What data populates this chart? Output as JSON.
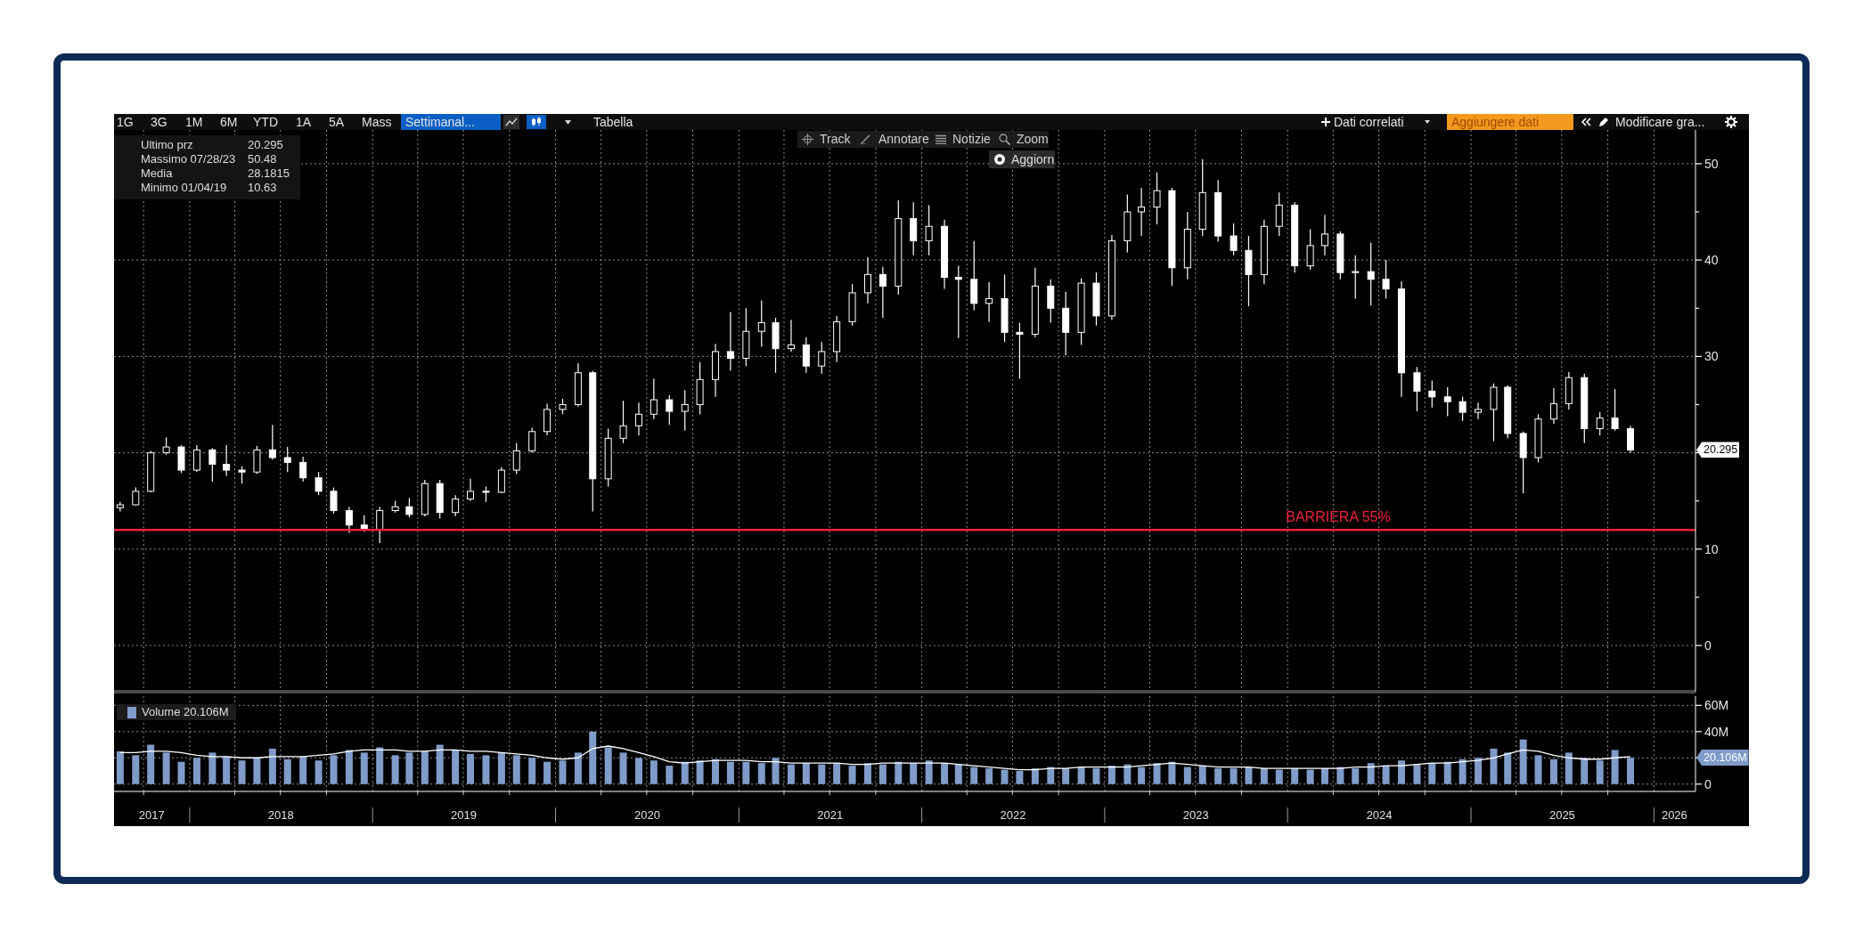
{
  "chart_data": [
    {
      "type": "other",
      "annotations": [
        "1G",
        "3G",
        "1M",
        "6M",
        "YTD",
        "1A",
        "5A",
        "Mass",
        "Settimanal...",
        "Tabella",
        "Dati correlati",
        "Aggiungere dati",
        "Modificare gra...",
        "Track",
        "Annotare",
        "Notizie",
        "Zoom",
        "Aggiorn"
      ]
    },
    {
      "type": "candlestick",
      "color": "#ffffff",
      "x": [
        "2017-08-15",
        "2017-09-15",
        "2017-10-15",
        "2017-11-15",
        "2017-12-15",
        "2018-01-15",
        "2018-02-15",
        "2018-03-15",
        "2018-04-15",
        "2018-05-15",
        "2018-06-15",
        "2018-07-15",
        "2018-08-15",
        "2018-09-15",
        "2018-10-15",
        "2018-11-15",
        "2018-12-15",
        "2019-01-15",
        "2019-02-15",
        "2019-03-15",
        "2019-04-15",
        "2019-05-15",
        "2019-06-15",
        "2019-07-15",
        "2019-08-15",
        "2019-09-15",
        "2019-10-15",
        "2019-11-15",
        "2019-12-15",
        "2020-01-15",
        "2020-02-15",
        "2020-03-15",
        "2020-04-15",
        "2020-05-15",
        "2020-06-15",
        "2020-07-15",
        "2020-08-15",
        "2020-09-15",
        "2020-10-15",
        "2020-11-15",
        "2020-12-15",
        "2021-01-15",
        "2021-02-15",
        "2021-03-15",
        "2021-04-15",
        "2021-05-15",
        "2021-06-15",
        "2021-07-15",
        "2021-08-15",
        "2021-09-15",
        "2021-10-15",
        "2021-11-15",
        "2021-12-15",
        "2022-01-15",
        "2022-02-15",
        "2022-03-15",
        "2022-04-15",
        "2022-05-15",
        "2022-06-15",
        "2022-07-15",
        "2022-08-15",
        "2022-09-15",
        "2022-10-15",
        "2022-11-15",
        "2022-12-15",
        "2023-01-15",
        "2023-02-15",
        "2023-03-15",
        "2023-04-15",
        "2023-05-15",
        "2023-06-15",
        "2023-07-15",
        "2023-08-15",
        "2023-09-15",
        "2023-10-15",
        "2023-11-15",
        "2023-12-15",
        "2024-01-15",
        "2024-02-15",
        "2024-03-15",
        "2024-04-15",
        "2024-05-15",
        "2024-06-15",
        "2024-07-15",
        "2024-08-15",
        "2024-09-15",
        "2024-10-15",
        "2024-11-15",
        "2024-12-15",
        "2025-01-15",
        "2025-02-15",
        "2025-03-15",
        "2025-04-15",
        "2025-05-15",
        "2025-06-15",
        "2025-07-15",
        "2025-08-15",
        "2025-09-15",
        "2025-10-15",
        "2025-11-15"
      ],
      "ohlc": [
        [
          14.3,
          14.9,
          13.9,
          14.6
        ],
        [
          14.6,
          16.4,
          14.5,
          16.0
        ],
        [
          16.0,
          20.2,
          15.9,
          20.0
        ],
        [
          20.0,
          21.6,
          19.8,
          20.6
        ],
        [
          20.6,
          20.8,
          17.9,
          18.2
        ],
        [
          18.2,
          20.8,
          18.0,
          20.3
        ],
        [
          20.3,
          20.5,
          17.0,
          18.8
        ],
        [
          18.8,
          20.8,
          17.6,
          18.2
        ],
        [
          18.2,
          18.6,
          16.8,
          18.0
        ],
        [
          18.0,
          20.7,
          17.8,
          20.3
        ],
        [
          20.3,
          22.9,
          19.3,
          19.5
        ],
        [
          19.5,
          20.6,
          18.0,
          19.0
        ],
        [
          19.0,
          19.6,
          17.0,
          17.4
        ],
        [
          17.4,
          18.0,
          15.6,
          16.0
        ],
        [
          16.0,
          16.4,
          13.7,
          14.0
        ],
        [
          14.0,
          14.4,
          11.7,
          12.5
        ],
        [
          12.5,
          13.5,
          11.8,
          12.0
        ],
        [
          12.0,
          14.4,
          10.63,
          14.0
        ],
        [
          14.0,
          15.0,
          13.8,
          14.4
        ],
        [
          14.4,
          15.3,
          13.3,
          13.6
        ],
        [
          13.6,
          17.2,
          13.4,
          16.8
        ],
        [
          16.8,
          17.2,
          13.2,
          13.8
        ],
        [
          13.8,
          15.6,
          13.4,
          15.2
        ],
        [
          15.2,
          17.3,
          15.0,
          16.0
        ],
        [
          16.0,
          16.5,
          14.9,
          15.9
        ],
        [
          15.9,
          18.5,
          15.8,
          18.2
        ],
        [
          18.2,
          21.0,
          17.8,
          20.2
        ],
        [
          20.2,
          22.6,
          20.0,
          22.2
        ],
        [
          22.2,
          25.1,
          21.8,
          24.5
        ],
        [
          24.5,
          25.6,
          24.0,
          25.0
        ],
        [
          25.0,
          29.3,
          24.8,
          28.3
        ],
        [
          28.3,
          28.5,
          13.9,
          17.3
        ],
        [
          17.3,
          22.5,
          16.5,
          21.5
        ],
        [
          21.5,
          25.4,
          21.0,
          22.8
        ],
        [
          22.8,
          25.2,
          21.8,
          24.0
        ],
        [
          24.0,
          27.7,
          23.5,
          25.5
        ],
        [
          25.5,
          26.0,
          22.9,
          24.3
        ],
        [
          24.3,
          26.5,
          22.3,
          25.0
        ],
        [
          25.0,
          29.4,
          24.0,
          27.6
        ],
        [
          27.6,
          31.3,
          25.8,
          30.5
        ],
        [
          30.5,
          34.6,
          28.5,
          29.8
        ],
        [
          29.8,
          35.0,
          29.0,
          32.6
        ],
        [
          32.6,
          35.8,
          31.0,
          33.5
        ],
        [
          33.5,
          34.0,
          28.3,
          30.8
        ],
        [
          30.8,
          33.8,
          30.5,
          31.2
        ],
        [
          31.2,
          32.0,
          28.3,
          29.0
        ],
        [
          29.0,
          31.5,
          28.2,
          30.5
        ],
        [
          30.5,
          34.2,
          29.4,
          33.6
        ],
        [
          33.6,
          37.5,
          33.2,
          36.6
        ],
        [
          36.6,
          40.3,
          35.5,
          38.5
        ],
        [
          38.5,
          39.3,
          34.0,
          37.3
        ],
        [
          37.3,
          46.2,
          36.4,
          44.3
        ],
        [
          44.3,
          46.0,
          40.5,
          42.0
        ],
        [
          42.0,
          45.7,
          40.5,
          43.5
        ],
        [
          43.5,
          44.2,
          37.0,
          38.2
        ],
        [
          38.2,
          39.4,
          31.9,
          38.0
        ],
        [
          38.0,
          42.0,
          34.8,
          35.5
        ],
        [
          35.5,
          37.7,
          33.6,
          36.0
        ],
        [
          36.0,
          38.5,
          31.5,
          32.5
        ],
        [
          32.5,
          33.5,
          27.7,
          32.3
        ],
        [
          32.3,
          39.2,
          32.0,
          37.3
        ],
        [
          37.3,
          38.0,
          33.5,
          35.0
        ],
        [
          35.0,
          36.7,
          30.1,
          32.5
        ],
        [
          32.5,
          38.1,
          31.2,
          37.6
        ],
        [
          37.6,
          38.7,
          33.2,
          34.2
        ],
        [
          34.2,
          42.6,
          33.8,
          42.0
        ],
        [
          42.0,
          46.8,
          40.8,
          45.0
        ],
        [
          45.0,
          47.5,
          42.5,
          45.5
        ],
        [
          45.5,
          49.1,
          43.7,
          47.2
        ],
        [
          47.2,
          47.5,
          37.3,
          39.2
        ],
        [
          39.2,
          45.0,
          38.0,
          43.2
        ],
        [
          43.2,
          50.48,
          42.5,
          47.0
        ],
        [
          47.0,
          48.3,
          41.9,
          42.5
        ],
        [
          42.5,
          43.8,
          40.5,
          41.0
        ],
        [
          41.0,
          42.5,
          35.2,
          38.5
        ],
        [
          38.5,
          44.2,
          37.5,
          43.5
        ],
        [
          43.5,
          47.0,
          42.5,
          45.7
        ],
        [
          45.7,
          46.0,
          38.7,
          39.4
        ],
        [
          39.4,
          43.2,
          39.0,
          41.5
        ],
        [
          41.5,
          44.7,
          40.5,
          42.7
        ],
        [
          42.7,
          43.0,
          38.0,
          38.7
        ],
        [
          38.7,
          40.5,
          36.0,
          38.8
        ],
        [
          38.8,
          41.8,
          35.3,
          38.0
        ],
        [
          38.0,
          40.0,
          36.0,
          37.0
        ],
        [
          37.0,
          37.8,
          25.8,
          28.3
        ],
        [
          28.3,
          28.9,
          24.3,
          26.4
        ],
        [
          26.4,
          27.5,
          24.7,
          25.8
        ],
        [
          25.8,
          26.8,
          23.8,
          25.3
        ],
        [
          25.3,
          25.8,
          23.3,
          24.2
        ],
        [
          24.2,
          25.2,
          23.5,
          24.5
        ],
        [
          24.5,
          27.2,
          21.2,
          26.8
        ],
        [
          26.8,
          27.0,
          21.5,
          22.0
        ],
        [
          22.0,
          22.2,
          15.8,
          19.5
        ],
        [
          19.5,
          24.0,
          19.0,
          23.5
        ],
        [
          23.5,
          26.7,
          23.0,
          25.1
        ],
        [
          25.1,
          28.4,
          24.5,
          27.8
        ],
        [
          27.8,
          28.2,
          21.0,
          22.5
        ],
        [
          22.5,
          24.2,
          21.8,
          23.6
        ],
        [
          23.6,
          26.6,
          22.3,
          22.5
        ],
        [
          22.5,
          22.8,
          20.0,
          20.295
        ]
      ],
      "xlim": [
        "2017-08-03",
        "2026-03-25"
      ],
      "xticks": [
        {
          "value": "2017-10-01",
          "label": null
        },
        {
          "value": "2018-01-01",
          "label": null
        },
        {
          "value": "2018-04-01",
          "label": null
        },
        {
          "value": "2018-07-01",
          "label": null
        },
        {
          "value": "2018-10-01",
          "label": null
        },
        {
          "value": "2019-01-01",
          "label": null
        },
        {
          "value": "2019-04-01",
          "label": null
        },
        {
          "value": "2019-07-01",
          "label": null
        },
        {
          "value": "2019-10-01",
          "label": null
        },
        {
          "value": "2020-01-01",
          "label": null
        },
        {
          "value": "2020-04-01",
          "label": null
        },
        {
          "value": "2020-07-01",
          "label": null
        },
        {
          "value": "2020-10-01",
          "label": null
        },
        {
          "value": "2021-01-01",
          "label": null
        },
        {
          "value": "2021-04-01",
          "label": null
        },
        {
          "value": "2021-07-01",
          "label": null
        },
        {
          "value": "2021-10-01",
          "label": null
        },
        {
          "value": "2022-01-01",
          "label": null
        },
        {
          "value": "2022-04-01",
          "label": null
        },
        {
          "value": "2022-07-01",
          "label": null
        },
        {
          "value": "2022-10-01",
          "label": null
        },
        {
          "value": "2023-01-01",
          "label": null
        },
        {
          "value": "2023-04-01",
          "label": null
        },
        {
          "value": "2023-07-01",
          "label": null
        },
        {
          "value": "2023-10-01",
          "label": null
        },
        {
          "value": "2024-01-01",
          "label": null
        },
        {
          "value": "2024-04-01",
          "label": null
        },
        {
          "value": "2024-07-01",
          "label": null
        },
        {
          "value": "2024-10-01",
          "label": null
        },
        {
          "value": "2025-01-01",
          "label": null
        },
        {
          "value": "2025-04-01",
          "label": null
        },
        {
          "value": "2025-07-01",
          "label": null
        },
        {
          "value": "2025-10-01",
          "label": null
        },
        {
          "value": "2026-01-01",
          "label": null
        }
      ],
      "ylim": [
        -4.8,
        53.5
      ],
      "yticks": [
        0,
        {
          "value": 5,
          "label": null
        },
        10,
        {
          "value": 15,
          "label": null
        },
        {
          "value": 20,
          "label": null
        },
        {
          "value": 25,
          "label": null
        },
        30,
        {
          "value": 35,
          "label": null
        },
        40,
        {
          "value": 45,
          "label": null
        },
        50
      ],
      "tick_labels": "y",
      "grid": true,
      "ref_lines": [
        {
          "axis": "y",
          "value": 12,
          "label": "BARRIERA 55%",
          "color": "#f0203c"
        }
      ],
      "annotations": [
        "Ultimo prz",
        "20.295",
        "Massimo 07/28/23",
        "50.48",
        "Media",
        "28.1815",
        "Minimo 01/04/19",
        "10.63",
        "20.295"
      ]
    },
    {
      "type": "bar",
      "x": [
        "2017-08-15",
        "2017-09-15",
        "2017-10-15",
        "2017-11-15",
        "2017-12-15",
        "2018-01-15",
        "2018-02-15",
        "2018-03-15",
        "2018-04-15",
        "2018-05-15",
        "2018-06-15",
        "2018-07-15",
        "2018-08-15",
        "2018-09-15",
        "2018-10-15",
        "2018-11-15",
        "2018-12-15",
        "2019-01-15",
        "2019-02-15",
        "2019-03-15",
        "2019-04-15",
        "2019-05-15",
        "2019-06-15",
        "2019-07-15",
        "2019-08-15",
        "2019-09-15",
        "2019-10-15",
        "2019-11-15",
        "2019-12-15",
        "2020-01-15",
        "2020-02-15",
        "2020-03-15",
        "2020-04-15",
        "2020-05-15",
        "2020-06-15",
        "2020-07-15",
        "2020-08-15",
        "2020-09-15",
        "2020-10-15",
        "2020-11-15",
        "2020-12-15",
        "2021-01-15",
        "2021-02-15",
        "2021-03-15",
        "2021-04-15",
        "2021-05-15",
        "2021-06-15",
        "2021-07-15",
        "2021-08-15",
        "2021-09-15",
        "2021-10-15",
        "2021-11-15",
        "2021-12-15",
        "2022-01-15",
        "2022-02-15",
        "2022-03-15",
        "2022-04-15",
        "2022-05-15",
        "2022-06-15",
        "2022-07-15",
        "2022-08-15",
        "2022-09-15",
        "2022-10-15",
        "2022-11-15",
        "2022-12-15",
        "2023-01-15",
        "2023-02-15",
        "2023-03-15",
        "2023-04-15",
        "2023-05-15",
        "2023-06-15",
        "2023-07-15",
        "2023-08-15",
        "2023-09-15",
        "2023-10-15",
        "2023-11-15",
        "2023-12-15",
        "2024-01-15",
        "2024-02-15",
        "2024-03-15",
        "2024-04-15",
        "2024-05-15",
        "2024-06-15",
        "2024-07-15",
        "2024-08-15",
        "2024-09-15",
        "2024-10-15",
        "2024-11-15",
        "2024-12-15",
        "2025-01-15",
        "2025-02-15",
        "2025-03-15",
        "2025-04-15",
        "2025-05-15",
        "2025-06-15",
        "2025-07-15",
        "2025-08-15",
        "2025-09-15",
        "2025-10-15",
        "2025-11-15"
      ],
      "series": [
        {
          "name": "Volume 20.106M",
          "color": "#7f9bc9",
          "values": [
            25,
            22,
            30,
            24,
            17,
            20,
            24,
            21,
            18,
            20,
            27,
            19,
            21,
            18,
            22,
            26,
            24,
            28,
            22,
            24,
            25,
            30,
            26,
            23,
            22,
            24,
            22,
            20,
            17,
            18,
            24,
            40,
            28,
            24,
            20,
            18,
            14,
            17,
            18,
            19,
            17,
            17,
            16,
            20,
            15,
            16,
            15,
            16,
            14,
            16,
            15,
            17,
            16,
            18,
            16,
            15,
            13,
            12,
            11,
            10,
            12,
            13,
            12,
            13,
            12,
            14,
            15,
            13,
            16,
            17,
            13,
            14,
            12,
            12,
            13,
            12,
            11,
            12,
            11,
            12,
            13,
            12,
            16,
            14,
            18,
            15,
            16,
            17,
            19,
            20,
            27,
            24,
            34,
            22,
            19,
            24,
            20,
            18,
            26,
            20.106
          ]
        },
        {
          "type": "line",
          "color": "#ffffff",
          "values": [
            24,
            24,
            25,
            25,
            24,
            22,
            21,
            21,
            20,
            20,
            21,
            21,
            21,
            22,
            23,
            25,
            26,
            26,
            26,
            25,
            25,
            26,
            26,
            25,
            25,
            24,
            23,
            22,
            20,
            19,
            20,
            27,
            29,
            27,
            24,
            21,
            17,
            16,
            17,
            18,
            18,
            18,
            17,
            17,
            16,
            16,
            16,
            16,
            15,
            15,
            16,
            16,
            16,
            16,
            16,
            15,
            14,
            13,
            12,
            11,
            11,
            12,
            12,
            13,
            13,
            13,
            13,
            14,
            15,
            16,
            15,
            14,
            13,
            13,
            13,
            12,
            12,
            12,
            12,
            12,
            12,
            13,
            13,
            14,
            14,
            15,
            16,
            16,
            17,
            18,
            20,
            23,
            26,
            25,
            22,
            20,
            19,
            19,
            20,
            21
          ]
        }
      ],
      "xlim": [
        "2017-08-03",
        "2026-03-25"
      ],
      "xticks": [
        {
          "value": "2017-10-17",
          "label": "2017"
        },
        {
          "value": "2018-07-02",
          "label": "2018"
        },
        {
          "value": "2019-07-02",
          "label": "2019"
        },
        {
          "value": "2020-07-02",
          "label": "2020"
        },
        {
          "value": "2021-07-02",
          "label": "2021"
        },
        {
          "value": "2022-07-02",
          "label": "2022"
        },
        {
          "value": "2023-07-02",
          "label": "2023"
        },
        {
          "value": "2024-07-02",
          "label": "2024"
        },
        {
          "value": "2025-07-02",
          "label": "2025"
        },
        {
          "value": "2026-02-11",
          "label": "2026"
        },
        {
          "value": "2017-10-01",
          "label": null
        },
        {
          "value": "2018-01-01",
          "label": null
        },
        {
          "value": "2018-04-01",
          "label": null
        },
        {
          "value": "2018-07-01",
          "label": null
        },
        {
          "value": "2018-10-01",
          "label": null
        },
        {
          "value": "2019-01-01",
          "label": null
        },
        {
          "value": "2019-04-01",
          "label": null
        },
        {
          "value": "2019-07-01",
          "label": null
        },
        {
          "value": "2019-10-01",
          "label": null
        },
        {
          "value": "2020-01-01",
          "label": null
        },
        {
          "value": "2020-04-01",
          "label": null
        },
        {
          "value": "2020-07-01",
          "label": null
        },
        {
          "value": "2020-10-01",
          "label": null
        },
        {
          "value": "2021-01-01",
          "label": null
        },
        {
          "value": "2021-04-01",
          "label": null
        },
        {
          "value": "2021-07-01",
          "label": null
        },
        {
          "value": "2021-10-01",
          "label": null
        },
        {
          "value": "2022-01-01",
          "label": null
        },
        {
          "value": "2022-04-01",
          "label": null
        },
        {
          "value": "2022-07-01",
          "label": null
        },
        {
          "value": "2022-10-01",
          "label": null
        },
        {
          "value": "2023-01-01",
          "label": null
        },
        {
          "value": "2023-04-01",
          "label": null
        },
        {
          "value": "2023-07-01",
          "label": null
        },
        {
          "value": "2023-10-01",
          "label": null
        },
        {
          "value": "2024-01-01",
          "label": null
        },
        {
          "value": "2024-04-01",
          "label": null
        },
        {
          "value": "2024-07-01",
          "label": null
        },
        {
          "value": "2024-10-01",
          "label": null
        },
        {
          "value": "2025-01-01",
          "label": null
        },
        {
          "value": "2025-04-01",
          "label": null
        },
        {
          "value": "2025-07-01",
          "label": null
        },
        {
          "value": "2025-10-01",
          "label": null
        },
        {
          "value": "2026-01-01",
          "label": null
        }
      ],
      "ylim": [
        -5.6,
        67
      ],
      "yticks": [
        0,
        {
          "value": 20,
          "label": null
        },
        {
          "value": 40,
          "label": "40M"
        },
        {
          "value": 60,
          "label": "60M"
        }
      ],
      "grid": true,
      "legend": "top left",
      "annotations": [
        "20.106M"
      ]
    }
  ]
}
